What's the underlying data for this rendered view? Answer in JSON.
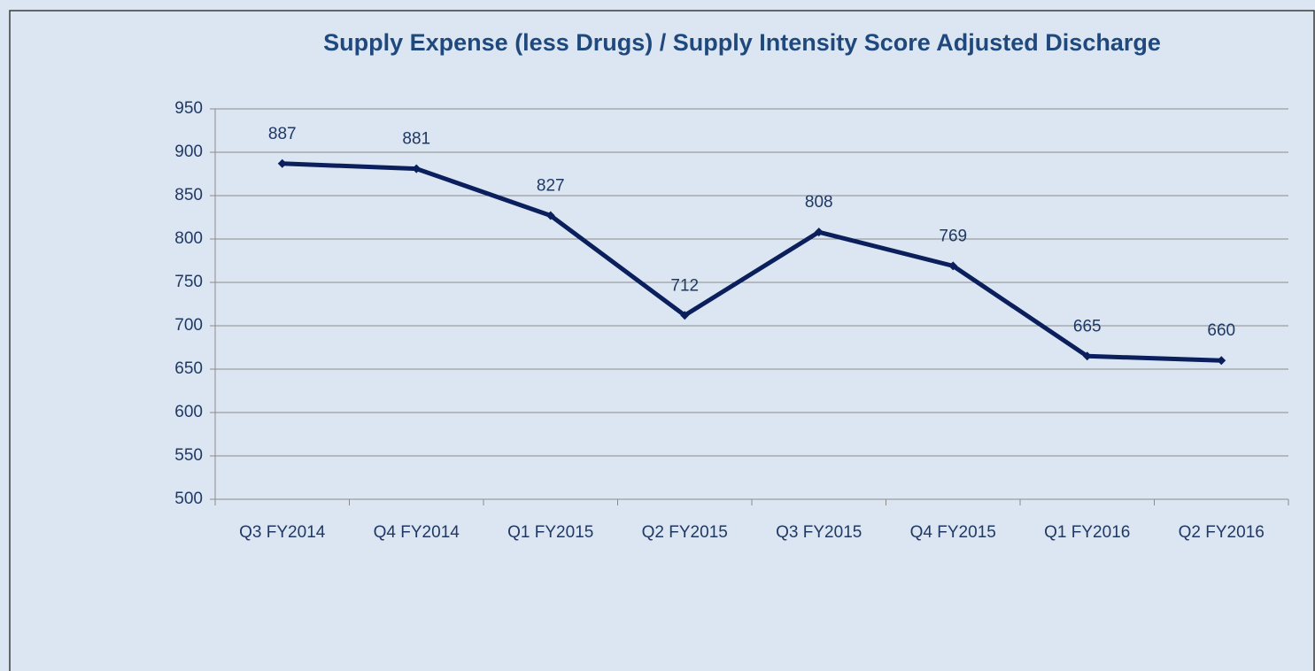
{
  "chart_data": {
    "type": "line",
    "title": "Supply Expense (less Drugs) / Supply Intensity Score Adjusted Discharge",
    "categories": [
      "Q3 FY2014",
      "Q4 FY2014",
      "Q1 FY2015",
      "Q2 FY2015",
      "Q3 FY2015",
      "Q4 FY2015",
      "Q1 FY2016",
      "Q2 FY2016"
    ],
    "values": [
      887,
      881,
      827,
      712,
      808,
      769,
      665,
      660
    ],
    "color": "#0a1f5c",
    "ylim": [
      500,
      950
    ],
    "yticks": [
      500,
      550,
      600,
      650,
      700,
      750,
      800,
      850,
      900,
      950
    ],
    "grid": true
  }
}
